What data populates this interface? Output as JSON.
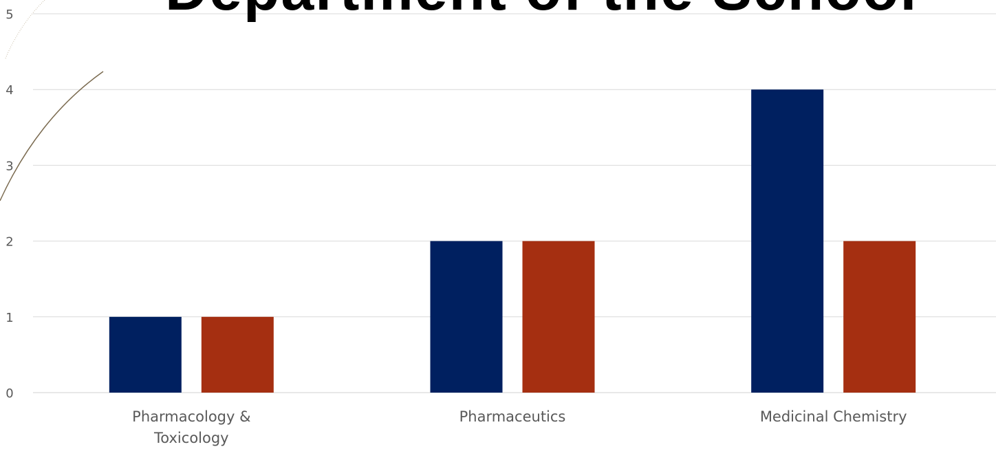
{
  "chart_data": {
    "type": "bar",
    "title": "Department of the School",
    "categories": [
      "Pharmacology & Toxicology",
      "Pharmaceutics",
      "Medicinal Chemistry"
    ],
    "category_label_lines": [
      [
        "Pharmacology &",
        "Toxicology"
      ],
      [
        "Pharmaceutics"
      ],
      [
        "Medicinal Chemistry"
      ]
    ],
    "series": [
      {
        "values": [
          1,
          2,
          4
        ],
        "color": "#002060"
      },
      {
        "values": [
          1,
          2,
          2
        ],
        "color": "#A52F11"
      }
    ],
    "ylim": [
      0,
      5
    ],
    "y_ticks": [
      "0",
      "1",
      "2",
      "3",
      "4",
      "5"
    ],
    "grid": true,
    "gridline_color": "#D9D9D9",
    "legend": "none"
  }
}
